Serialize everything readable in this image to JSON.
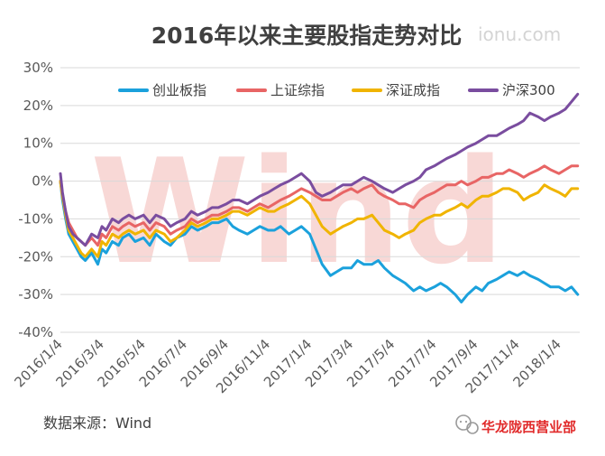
{
  "chart_data": {
    "type": "line",
    "title": "2016年以来主要股指走势对比",
    "watermark_url": "ionu.com",
    "ylim": [
      -40,
      30
    ],
    "yticks": [
      -40,
      -30,
      -20,
      -10,
      0,
      10,
      20,
      30
    ],
    "ytick_labels": [
      "-40%",
      "-30%",
      "-20%",
      "-10%",
      "0%",
      "10%",
      "20%",
      "30%"
    ],
    "xlim": [
      0,
      25
    ],
    "xticks": [
      0,
      2,
      4,
      6,
      8,
      10,
      12,
      14,
      16,
      18,
      20,
      22,
      24
    ],
    "xtick_labels": [
      "2016/1/4",
      "2016/3/4",
      "2016/5/4",
      "2016/7/4",
      "2016/9/4",
      "2016/11/4",
      "2017/1/4",
      "2017/3/4",
      "2017/5/4",
      "2017/7/4",
      "2017/9/4",
      "2017/11/4",
      "2018/1/4"
    ],
    "grid": true,
    "legend_position": "top",
    "source": "数据来源：Wind",
    "watermark": "Wind",
    "series": [
      {
        "name": "创业板指",
        "color": "#1ba1dc",
        "x": [
          0,
          0.1,
          0.25,
          0.4,
          0.6,
          0.8,
          1.0,
          1.2,
          1.5,
          1.8,
          2.0,
          2.2,
          2.5,
          2.8,
          3.0,
          3.3,
          3.6,
          4.0,
          4.3,
          4.6,
          5.0,
          5.3,
          5.6,
          6.0,
          6.3,
          6.6,
          7.0,
          7.3,
          7.6,
          8.0,
          8.3,
          8.6,
          9.0,
          9.3,
          9.6,
          10.0,
          10.3,
          10.6,
          11.0,
          11.3,
          11.6,
          12.0,
          12.3,
          12.6,
          13.0,
          13.3,
          13.6,
          14.0,
          14.3,
          14.6,
          15.0,
          15.3,
          15.6,
          16.0,
          16.3,
          16.6,
          17.0,
          17.3,
          17.6,
          18.0,
          18.3,
          18.6,
          19.0,
          19.3,
          19.6,
          20.0,
          20.3,
          20.6,
          21.0,
          21.3,
          21.6,
          22.0,
          22.3,
          22.6,
          23.0,
          23.3,
          23.6,
          24.0,
          24.3,
          24.6,
          24.9
        ],
        "y": [
          0,
          -5,
          -10,
          -14,
          -16,
          -18,
          -20,
          -21,
          -19,
          -22,
          -18,
          -19,
          -16,
          -17,
          -15,
          -14,
          -16,
          -15,
          -17,
          -14,
          -16,
          -17,
          -15,
          -14,
          -12,
          -13,
          -12,
          -11,
          -11,
          -10,
          -12,
          -13,
          -14,
          -13,
          -12,
          -13,
          -13,
          -12,
          -14,
          -13,
          -12,
          -14,
          -18,
          -22,
          -25,
          -24,
          -23,
          -23,
          -21,
          -22,
          -22,
          -21,
          -23,
          -25,
          -26,
          -27,
          -29,
          -28,
          -29,
          -28,
          -27,
          -28,
          -30,
          -32,
          -30,
          -28,
          -29,
          -27,
          -26,
          -25,
          -24,
          -25,
          -24,
          -25,
          -26,
          -27,
          -28,
          -28,
          -29,
          -28,
          -30
        ]
      },
      {
        "name": "上证综指",
        "color": "#e86565",
        "x": [
          0,
          0.1,
          0.25,
          0.4,
          0.6,
          0.8,
          1.0,
          1.2,
          1.5,
          1.8,
          2.0,
          2.2,
          2.5,
          2.8,
          3.0,
          3.3,
          3.6,
          4.0,
          4.3,
          4.6,
          5.0,
          5.3,
          5.6,
          6.0,
          6.3,
          6.6,
          7.0,
          7.3,
          7.6,
          8.0,
          8.3,
          8.6,
          9.0,
          9.3,
          9.6,
          10.0,
          10.3,
          10.6,
          11.0,
          11.3,
          11.6,
          12.0,
          12.3,
          12.6,
          13.0,
          13.3,
          13.6,
          14.0,
          14.3,
          14.6,
          15.0,
          15.3,
          15.6,
          16.0,
          16.3,
          16.6,
          17.0,
          17.3,
          17.6,
          18.0,
          18.3,
          18.6,
          19.0,
          19.3,
          19.6,
          20.0,
          20.3,
          20.6,
          21.0,
          21.3,
          21.6,
          22.0,
          22.3,
          22.6,
          23.0,
          23.3,
          23.6,
          24.0,
          24.3,
          24.6,
          24.9
        ],
        "y": [
          0,
          -4,
          -8,
          -11,
          -13,
          -15,
          -16,
          -17,
          -15,
          -17,
          -14,
          -15,
          -12,
          -13,
          -12,
          -11,
          -12,
          -11,
          -13,
          -11,
          -12,
          -14,
          -13,
          -12,
          -10,
          -11,
          -10,
          -9,
          -9,
          -8,
          -7,
          -7,
          -8,
          -7,
          -6,
          -7,
          -6,
          -5,
          -4,
          -3,
          -2,
          -3,
          -4,
          -5,
          -5,
          -4,
          -3,
          -2,
          -3,
          -2,
          -1,
          -3,
          -4,
          -5,
          -6,
          -6,
          -7,
          -5,
          -4,
          -3,
          -2,
          -1,
          -1,
          0,
          -1,
          0,
          1,
          1,
          2,
          2,
          3,
          2,
          1,
          2,
          3,
          4,
          3,
          2,
          3,
          4,
          4
        ]
      },
      {
        "name": "深证成指",
        "color": "#f0b400",
        "x": [
          0,
          0.1,
          0.25,
          0.4,
          0.6,
          0.8,
          1.0,
          1.2,
          1.5,
          1.8,
          2.0,
          2.2,
          2.5,
          2.8,
          3.0,
          3.3,
          3.6,
          4.0,
          4.3,
          4.6,
          5.0,
          5.3,
          5.6,
          6.0,
          6.3,
          6.6,
          7.0,
          7.3,
          7.6,
          8.0,
          8.3,
          8.6,
          9.0,
          9.3,
          9.6,
          10.0,
          10.3,
          10.6,
          11.0,
          11.3,
          11.6,
          12.0,
          12.3,
          12.6,
          13.0,
          13.3,
          13.6,
          14.0,
          14.3,
          14.6,
          15.0,
          15.3,
          15.6,
          16.0,
          16.3,
          16.6,
          17.0,
          17.3,
          17.6,
          18.0,
          18.3,
          18.6,
          19.0,
          19.3,
          19.6,
          20.0,
          20.3,
          20.6,
          21.0,
          21.3,
          21.6,
          22.0,
          22.3,
          22.6,
          23.0,
          23.3,
          23.6,
          24.0,
          24.3,
          24.6,
          24.9
        ],
        "y": [
          0,
          -4,
          -9,
          -13,
          -15,
          -17,
          -19,
          -20,
          -18,
          -20,
          -16,
          -17,
          -14,
          -15,
          -14,
          -13,
          -14,
          -13,
          -15,
          -13,
          -14,
          -16,
          -15,
          -13,
          -11,
          -12,
          -11,
          -10,
          -10,
          -9,
          -8,
          -8,
          -9,
          -8,
          -7,
          -8,
          -8,
          -7,
          -6,
          -5,
          -4,
          -6,
          -9,
          -12,
          -14,
          -13,
          -12,
          -11,
          -10,
          -10,
          -9,
          -11,
          -13,
          -14,
          -15,
          -14,
          -13,
          -11,
          -10,
          -9,
          -9,
          -8,
          -7,
          -6,
          -7,
          -5,
          -4,
          -4,
          -3,
          -2,
          -2,
          -3,
          -5,
          -4,
          -3,
          -1,
          -2,
          -3,
          -4,
          -2,
          -2
        ]
      },
      {
        "name": "沪深300",
        "color": "#7a4d9f",
        "x": [
          0,
          0.1,
          0.25,
          0.4,
          0.6,
          0.8,
          1.0,
          1.2,
          1.5,
          1.8,
          2.0,
          2.2,
          2.5,
          2.8,
          3.0,
          3.3,
          3.6,
          4.0,
          4.3,
          4.6,
          5.0,
          5.3,
          5.6,
          6.0,
          6.3,
          6.6,
          7.0,
          7.3,
          7.6,
          8.0,
          8.3,
          8.6,
          9.0,
          9.3,
          9.6,
          10.0,
          10.3,
          10.6,
          11.0,
          11.3,
          11.6,
          12.0,
          12.3,
          12.6,
          13.0,
          13.3,
          13.6,
          14.0,
          14.3,
          14.6,
          15.0,
          15.3,
          15.6,
          16.0,
          16.3,
          16.6,
          17.0,
          17.3,
          17.6,
          18.0,
          18.3,
          18.6,
          19.0,
          19.3,
          19.6,
          20.0,
          20.3,
          20.6,
          21.0,
          21.3,
          21.6,
          22.0,
          22.3,
          22.6,
          23.0,
          23.3,
          23.6,
          24.0,
          24.3,
          24.6,
          24.9
        ],
        "y": [
          2,
          -3,
          -8,
          -12,
          -14,
          -15,
          -16,
          -17,
          -14,
          -15,
          -12,
          -13,
          -10,
          -11,
          -10,
          -9,
          -10,
          -9,
          -11,
          -9,
          -10,
          -12,
          -11,
          -10,
          -8,
          -9,
          -8,
          -7,
          -7,
          -6,
          -5,
          -5,
          -6,
          -5,
          -4,
          -3,
          -2,
          -1,
          0,
          1,
          2,
          0,
          -3,
          -4,
          -3,
          -2,
          -1,
          -1,
          0,
          1,
          0,
          -1,
          -2,
          -3,
          -2,
          -1,
          0,
          1,
          3,
          4,
          5,
          6,
          7,
          8,
          9,
          10,
          11,
          12,
          12,
          13,
          14,
          15,
          16,
          18,
          17,
          16,
          17,
          18,
          19,
          21,
          23
        ]
      }
    ]
  },
  "wechat": {
    "account_name": "华龙陇西营业部",
    "icon_name": "wechat-icon"
  }
}
